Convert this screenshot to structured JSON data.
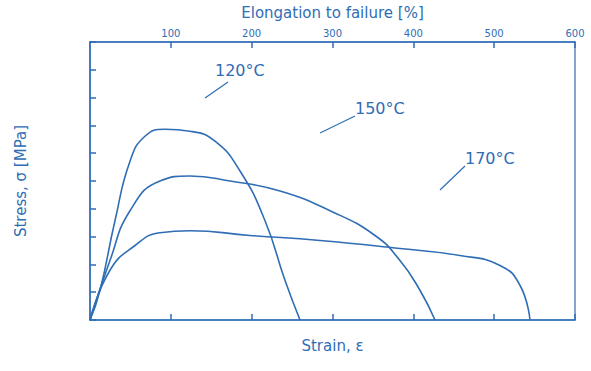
{
  "chart_data": {
    "type": "line",
    "xlabel": "Strain, ε",
    "x2label": "Elongation to failure [%]",
    "ylabel": "Stress, σ [MPa]",
    "xlim": [
      0,
      600
    ],
    "xticks": [
      100,
      200,
      300,
      400,
      500,
      600
    ],
    "ylim": [
      0,
      100
    ],
    "yticks": [
      0,
      10,
      20,
      30,
      40,
      50,
      60,
      70,
      80,
      90,
      100
    ],
    "tick_labels": "x",
    "grid": false,
    "color": "#2f6db5",
    "series": [
      {
        "name": "120°C",
        "color": "#2f6db5",
        "x": [
          0,
          12.4,
          30.9,
          49.5,
          68,
          92.8,
          123.7,
          154.6,
          185.6,
          216.5,
          241.2,
          259.8
        ],
        "values": [
          0,
          10.7,
          35.7,
          57.1,
          66.1,
          68.6,
          67.9,
          64.3,
          53.6,
          35.7,
          14.3,
          0
        ]
      },
      {
        "name": "150°C",
        "color": "#2f6db5",
        "x": [
          0,
          24.7,
          49.5,
          86.6,
          123.7,
          173.2,
          235.1,
          296.9,
          352.6,
          383.5,
          408.2,
          426.8
        ],
        "values": [
          0,
          21.4,
          39.3,
          50,
          51.8,
          50,
          46.4,
          39.3,
          30.4,
          21.4,
          10.7,
          0
        ]
      },
      {
        "name": "170°C",
        "color": "#2f6db5",
        "x": [
          0,
          24.7,
          55.7,
          86.6,
          123.7,
          197.9,
          284.5,
          383.5,
          457.7,
          507.2,
          531.9,
          544.3
        ],
        "values": [
          0,
          17.9,
          26.8,
          31.4,
          32.1,
          30.4,
          28.6,
          25.7,
          23.2,
          19.6,
          12.5,
          0
        ]
      }
    ]
  }
}
